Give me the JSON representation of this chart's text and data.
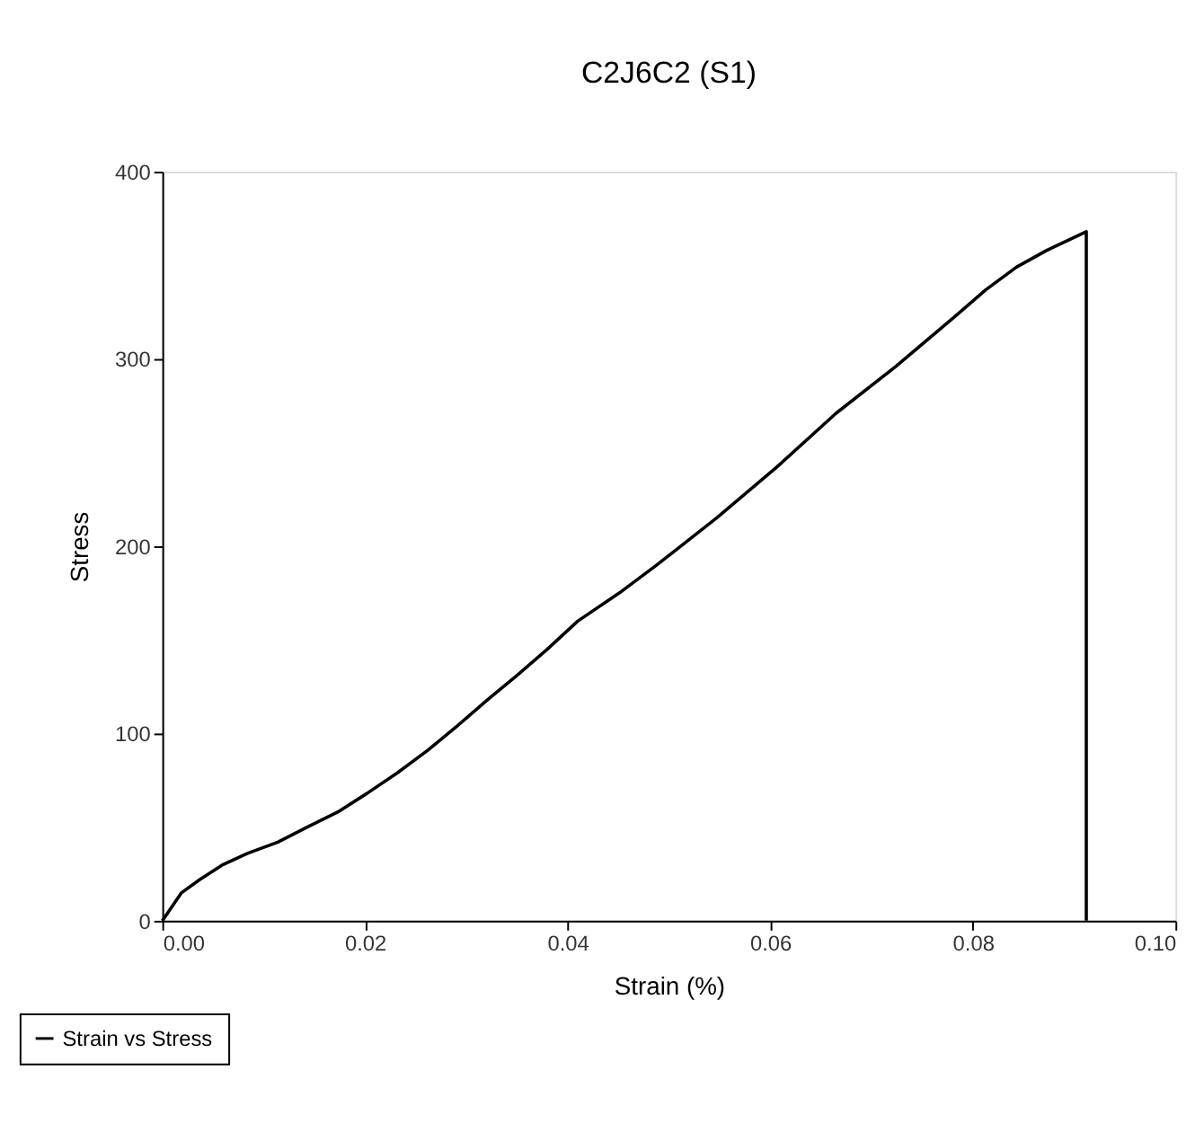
{
  "chart_data": {
    "type": "line",
    "title": "C2J6C2 (S1)",
    "xlabel": "Strain (%)",
    "ylabel": "Stress",
    "xlim": [
      0,
      0.1
    ],
    "xticks": [
      {
        "value": 0,
        "label": "0.00"
      },
      {
        "value": 0.02,
        "label": "0.02"
      },
      {
        "value": 0.04,
        "label": "0.04"
      },
      {
        "value": 0.06,
        "label": "0.06"
      },
      {
        "value": 0.08,
        "label": "0.08"
      },
      {
        "value": 0.1,
        "label": "0.10"
      }
    ],
    "ylim": [
      0,
      400
    ],
    "yticks": [
      0,
      100,
      200,
      300,
      400
    ],
    "grid": false,
    "legend": "bottom left",
    "marker": "none",
    "line_style": "solid",
    "series": [
      {
        "name": "Strain vs Stress",
        "color": "#000000",
        "x": [
          0,
          0.0019,
          0.0037,
          0.006,
          0.0084,
          0.0114,
          0.0143,
          0.0173,
          0.0202,
          0.0232,
          0.0262,
          0.0291,
          0.0321,
          0.035,
          0.038,
          0.041,
          0.0451,
          0.0488,
          0.0547,
          0.0606,
          0.0665,
          0.0724,
          0.0783,
          0.0813,
          0.0843,
          0.0873,
          0.0912,
          0.0912
        ],
        "values": [
          0,
          15,
          22,
          30,
          36,
          42,
          50,
          58,
          68,
          79,
          91,
          104,
          118,
          131,
          145,
          160,
          175,
          190,
          215,
          242,
          271,
          296,
          323,
          337,
          349,
          358,
          368,
          0
        ]
      }
    ]
  }
}
